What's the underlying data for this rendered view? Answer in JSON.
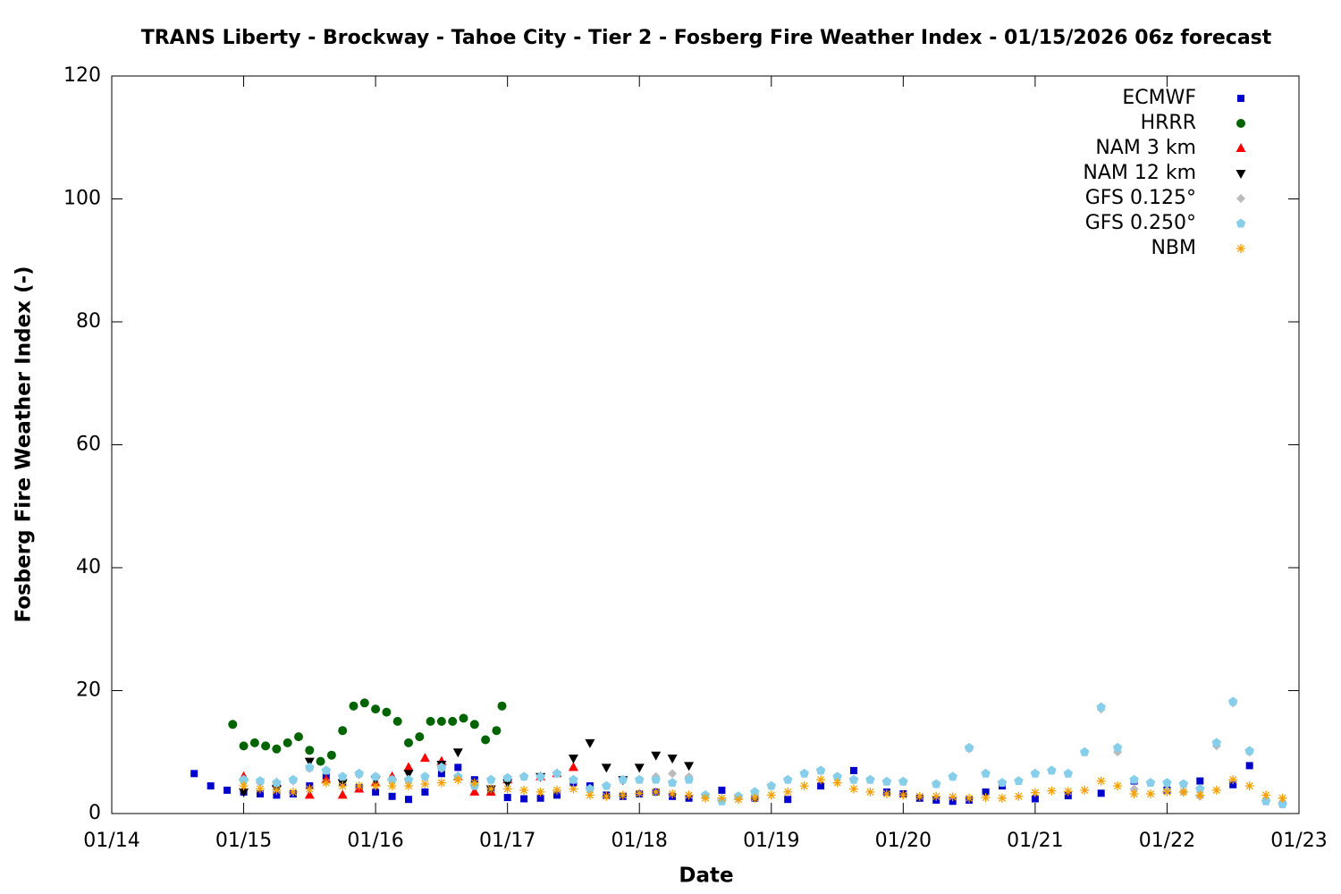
{
  "chart_data": {
    "type": "scatter",
    "title": "TRANS Liberty - Brockway - Tahoe City - Tier 2 - Fosberg Fire Weather Index - 01/15/2026 06z forecast",
    "x_label": "Date",
    "y_label": "Fosberg Fire Weather Index (-)",
    "xlim": [
      "01/14",
      "01/23"
    ],
    "xticks": [
      "01/14",
      "01/15",
      "01/16",
      "01/17",
      "01/18",
      "01/19",
      "01/20",
      "01/21",
      "01/22",
      "01/23"
    ],
    "ylim": [
      0,
      120
    ],
    "yticks": [
      0,
      20,
      40,
      60,
      80,
      100,
      120
    ],
    "grid": false,
    "legend": "upper right",
    "series": [
      {
        "name": "ECMWF",
        "color": "#0000cc",
        "marker": "square",
        "x": [
          "01/14 15:00",
          "01/14 18:00",
          "01/14 21:00",
          "01/15 00:00",
          "01/15 03:00",
          "01/15 06:00",
          "01/15 09:00",
          "01/15 12:00",
          "01/15 15:00",
          "01/15 18:00",
          "01/15 21:00",
          "01/16 00:00",
          "01/16 03:00",
          "01/16 06:00",
          "01/16 09:00",
          "01/16 12:00",
          "01/16 15:00",
          "01/16 18:00",
          "01/16 21:00",
          "01/17 00:00",
          "01/17 03:00",
          "01/17 06:00",
          "01/17 09:00",
          "01/17 12:00",
          "01/17 15:00",
          "01/17 18:00",
          "01/17 21:00",
          "01/18 00:00",
          "01/18 03:00",
          "01/18 06:00",
          "01/18 09:00",
          "01/18 15:00",
          "01/18 21:00",
          "01/19 03:00",
          "01/19 09:00",
          "01/19 15:00",
          "01/19 21:00",
          "01/20 00:00",
          "01/20 03:00",
          "01/20 06:00",
          "01/20 09:00",
          "01/20 12:00",
          "01/20 15:00",
          "01/20 18:00",
          "01/21 00:00",
          "01/21 06:00",
          "01/21 12:00",
          "01/21 18:00",
          "01/22 00:00",
          "01/22 06:00",
          "01/22 12:00",
          "01/22 15:00"
        ],
        "values": [
          6.5,
          4.5,
          3.8,
          3.5,
          3.2,
          3.0,
          3.2,
          4.5,
          6.0,
          5.0,
          4.2,
          3.5,
          2.8,
          2.3,
          3.5,
          6.5,
          7.5,
          5.5,
          3.5,
          2.6,
          2.4,
          2.5,
          3.0,
          5.0,
          4.5,
          3.0,
          2.8,
          3.2,
          3.5,
          2.8,
          2.5,
          3.8,
          2.5,
          2.3,
          4.5,
          7.0,
          3.5,
          3.2,
          2.5,
          2.2,
          2.0,
          2.2,
          3.5,
          4.5,
          2.4,
          2.9,
          3.3,
          5.3,
          3.8,
          5.3,
          4.7,
          7.8
        ]
      },
      {
        "name": "HRRR",
        "color": "#006400",
        "marker": "circle",
        "x": [
          "01/14 22:00",
          "01/15 00:00",
          "01/15 02:00",
          "01/15 04:00",
          "01/15 06:00",
          "01/15 08:00",
          "01/15 10:00",
          "01/15 12:00",
          "01/15 14:00",
          "01/15 16:00",
          "01/15 18:00",
          "01/15 20:00",
          "01/15 22:00",
          "01/16 00:00",
          "01/16 02:00",
          "01/16 04:00",
          "01/16 06:00",
          "01/16 08:00",
          "01/16 10:00",
          "01/16 12:00",
          "01/16 14:00",
          "01/16 16:00",
          "01/16 18:00",
          "01/16 20:00",
          "01/16 22:00",
          "01/16 23:00"
        ],
        "values": [
          14.5,
          11,
          11.5,
          11,
          10.5,
          11.5,
          12.5,
          10.3,
          8.5,
          9.5,
          13.5,
          17.5,
          18.0,
          17,
          16.5,
          15,
          11.5,
          12.5,
          15,
          15,
          15,
          15.5,
          14.5,
          12,
          13.5,
          17.5
        ]
      },
      {
        "name": "NAM 3 km",
        "color": "#ff0000",
        "marker": "triangle",
        "x": [
          "01/15 00:00",
          "01/15 06:00",
          "01/15 12:00",
          "01/15 15:00",
          "01/15 18:00",
          "01/15 21:00",
          "01/16 00:00",
          "01/16 03:00",
          "01/16 06:00",
          "01/16 09:00",
          "01/16 12:00",
          "01/16 15:00",
          "01/16 18:00",
          "01/16 21:00",
          "01/17 00:00",
          "01/17 06:00",
          "01/17 09:00",
          "01/17 12:00"
        ],
        "values": [
          6,
          5,
          3,
          5.5,
          3,
          4,
          5,
          6,
          7.5,
          9,
          8.5,
          6,
          3.5,
          3.5,
          5.5,
          6,
          6.5,
          7.5
        ]
      },
      {
        "name": "NAM 12 km",
        "color": "#000000",
        "marker": "triangle-down",
        "x": [
          "01/15 00:00",
          "01/15 06:00",
          "01/15 12:00",
          "01/15 18:00",
          "01/16 00:00",
          "01/16 06:00",
          "01/16 12:00",
          "01/16 15:00",
          "01/16 21:00",
          "01/17 00:00",
          "01/17 06:00",
          "01/17 12:00",
          "01/17 15:00",
          "01/17 18:00",
          "01/17 21:00",
          "01/18 00:00",
          "01/18 03:00",
          "01/18 06:00",
          "01/18 09:00"
        ],
        "values": [
          3.5,
          4,
          8.5,
          5,
          5.5,
          6.5,
          8,
          10,
          4,
          5,
          6,
          9,
          11.5,
          7.5,
          5.5,
          7.5,
          9.5,
          9,
          7.8
        ]
      },
      {
        "name": "GFS 0.125°",
        "color": "#bbbbbb",
        "marker": "diamond",
        "x": [
          "01/15 00:00",
          "01/15 03:00",
          "01/15 06:00",
          "01/15 09:00",
          "01/15 12:00",
          "01/15 15:00",
          "01/15 18:00",
          "01/15 21:00",
          "01/16 00:00",
          "01/16 03:00",
          "01/16 06:00",
          "01/16 09:00",
          "01/16 12:00",
          "01/16 15:00",
          "01/16 18:00",
          "01/16 21:00",
          "01/17 00:00",
          "01/17 03:00",
          "01/17 06:00",
          "01/17 09:00",
          "01/17 12:00",
          "01/17 15:00",
          "01/17 18:00",
          "01/17 21:00",
          "01/18 00:00",
          "01/18 03:00",
          "01/18 06:00",
          "01/18 09:00",
          "01/18 12:00",
          "01/18 15:00",
          "01/18 18:00",
          "01/18 21:00",
          "01/19 00:00",
          "01/19 03:00",
          "01/19 06:00",
          "01/19 09:00",
          "01/19 12:00",
          "01/19 15:00",
          "01/19 18:00",
          "01/19 21:00",
          "01/20 00:00",
          "01/20 06:00",
          "01/20 09:00",
          "01/20 12:00",
          "01/20 15:00",
          "01/20 18:00",
          "01/20 21:00",
          "01/21 00:00",
          "01/21 03:00",
          "01/21 06:00",
          "01/21 09:00",
          "01/21 12:00",
          "01/21 15:00",
          "01/21 18:00",
          "01/21 21:00",
          "01/22 00:00",
          "01/22 03:00",
          "01/22 06:00",
          "01/22 09:00",
          "01/22 12:00",
          "01/22 15:00",
          "01/22 18:00",
          "01/22 21:00"
        ],
        "values": [
          5.3,
          5.0,
          4.8,
          5.3,
          7.3,
          7.0,
          6.0,
          6.3,
          6.0,
          5.5,
          5.5,
          6.0,
          7.3,
          6.0,
          4.5,
          5.5,
          5.8,
          6.0,
          6.0,
          6.5,
          5.5,
          4.0,
          4.5,
          5.5,
          5.5,
          6.0,
          6.5,
          6.0,
          3.0,
          2.0,
          2.5,
          3.0,
          4.5,
          5.5,
          6.5,
          7.0,
          6.0,
          5.5,
          5.5,
          5.2,
          5.2,
          4.8,
          6.0,
          10.5,
          6.5,
          5.0,
          5.3,
          6.5,
          7.0,
          6.5,
          10.0,
          17.0,
          10.0,
          4.0,
          5.0,
          3.8,
          3.5,
          2.8,
          11.0,
          18.0,
          10.0,
          2.0,
          1.8
        ]
      },
      {
        "name": "GFS 0.250°",
        "color": "#87ceeb",
        "marker": "pentagon",
        "x": [
          "01/15 00:00",
          "01/15 03:00",
          "01/15 06:00",
          "01/15 09:00",
          "01/15 12:00",
          "01/15 15:00",
          "01/15 18:00",
          "01/15 21:00",
          "01/16 00:00",
          "01/16 03:00",
          "01/16 06:00",
          "01/16 09:00",
          "01/16 12:00",
          "01/16 15:00",
          "01/16 18:00",
          "01/16 21:00",
          "01/17 00:00",
          "01/17 03:00",
          "01/17 06:00",
          "01/17 09:00",
          "01/17 12:00",
          "01/17 15:00",
          "01/17 18:00",
          "01/17 21:00",
          "01/18 00:00",
          "01/18 03:00",
          "01/18 06:00",
          "01/18 09:00",
          "01/18 12:00",
          "01/18 15:00",
          "01/18 18:00",
          "01/18 21:00",
          "01/19 00:00",
          "01/19 03:00",
          "01/19 06:00",
          "01/19 09:00",
          "01/19 12:00",
          "01/19 15:00",
          "01/19 18:00",
          "01/19 21:00",
          "01/20 00:00",
          "01/20 06:00",
          "01/20 09:00",
          "01/20 12:00",
          "01/20 15:00",
          "01/20 18:00",
          "01/20 21:00",
          "01/21 00:00",
          "01/21 03:00",
          "01/21 06:00",
          "01/21 09:00",
          "01/21 12:00",
          "01/21 15:00",
          "01/21 18:00",
          "01/21 21:00",
          "01/22 00:00",
          "01/22 03:00",
          "01/22 06:00",
          "01/22 09:00",
          "01/22 12:00",
          "01/22 15:00",
          "01/22 18:00",
          "01/22 21:00"
        ],
        "values": [
          5.5,
          5.3,
          5.0,
          5.5,
          7.5,
          7.0,
          6.0,
          6.5,
          6.0,
          5.5,
          5.5,
          6.0,
          7.5,
          6.0,
          4.5,
          5.5,
          5.8,
          6.0,
          6.0,
          6.5,
          5.5,
          4.0,
          4.5,
          5.5,
          5.5,
          5.5,
          5.0,
          5.5,
          3.0,
          2.0,
          2.8,
          3.5,
          4.5,
          5.5,
          6.5,
          7.0,
          6.0,
          5.5,
          5.5,
          5.2,
          5.2,
          4.8,
          6.0,
          10.7,
          6.5,
          5.0,
          5.3,
          6.5,
          7.0,
          6.5,
          10.0,
          17.3,
          10.7,
          5.5,
          5.0,
          5.0,
          4.8,
          4.0,
          11.5,
          18.2,
          10.2,
          2.0,
          1.5
        ]
      },
      {
        "name": "NBM",
        "color": "#f5a000",
        "marker": "asterisk",
        "x": [
          "01/15 00:00",
          "01/15 03:00",
          "01/15 06:00",
          "01/15 09:00",
          "01/15 12:00",
          "01/15 15:00",
          "01/15 18:00",
          "01/15 21:00",
          "01/16 00:00",
          "01/16 03:00",
          "01/16 06:00",
          "01/16 09:00",
          "01/16 12:00",
          "01/16 15:00",
          "01/16 18:00",
          "01/16 21:00",
          "01/17 00:00",
          "01/17 03:00",
          "01/17 06:00",
          "01/17 09:00",
          "01/17 12:00",
          "01/17 15:00",
          "01/17 18:00",
          "01/17 21:00",
          "01/18 00:00",
          "01/18 03:00",
          "01/18 06:00",
          "01/18 09:00",
          "01/18 12:00",
          "01/18 15:00",
          "01/18 18:00",
          "01/18 21:00",
          "01/19 00:00",
          "01/19 03:00",
          "01/19 06:00",
          "01/19 09:00",
          "01/19 12:00",
          "01/19 15:00",
          "01/19 18:00",
          "01/19 21:00",
          "01/20 00:00",
          "01/20 03:00",
          "01/20 06:00",
          "01/20 09:00",
          "01/20 12:00",
          "01/20 15:00",
          "01/20 18:00",
          "01/20 21:00",
          "01/21 00:00",
          "01/21 03:00",
          "01/21 06:00",
          "01/21 09:00",
          "01/21 12:00",
          "01/21 15:00",
          "01/21 18:00",
          "01/21 21:00",
          "01/22 00:00",
          "01/22 03:00",
          "01/22 06:00",
          "01/22 09:00",
          "01/22 12:00",
          "01/22 15:00",
          "01/22 18:00",
          "01/22 21:00"
        ],
        "values": [
          4.5,
          4.0,
          3.8,
          3.5,
          4.0,
          5.0,
          4.5,
          4.5,
          4.5,
          4.5,
          4.5,
          4.8,
          5.0,
          5.5,
          5.0,
          4.0,
          4.0,
          3.8,
          3.5,
          3.8,
          4.0,
          3.0,
          2.8,
          3.0,
          3.3,
          3.5,
          3.2,
          3.0,
          2.5,
          2.5,
          2.3,
          2.5,
          3.0,
          3.5,
          4.5,
          5.5,
          5.0,
          4.0,
          3.5,
          3.2,
          3.0,
          2.8,
          2.8,
          2.7,
          2.5,
          2.6,
          2.5,
          2.8,
          3.4,
          3.7,
          3.6,
          3.8,
          5.3,
          4.5,
          3.2,
          3.2,
          3.5,
          3.5,
          3.0,
          3.8,
          5.5,
          4.5,
          3.0,
          2.5
        ]
      }
    ]
  }
}
